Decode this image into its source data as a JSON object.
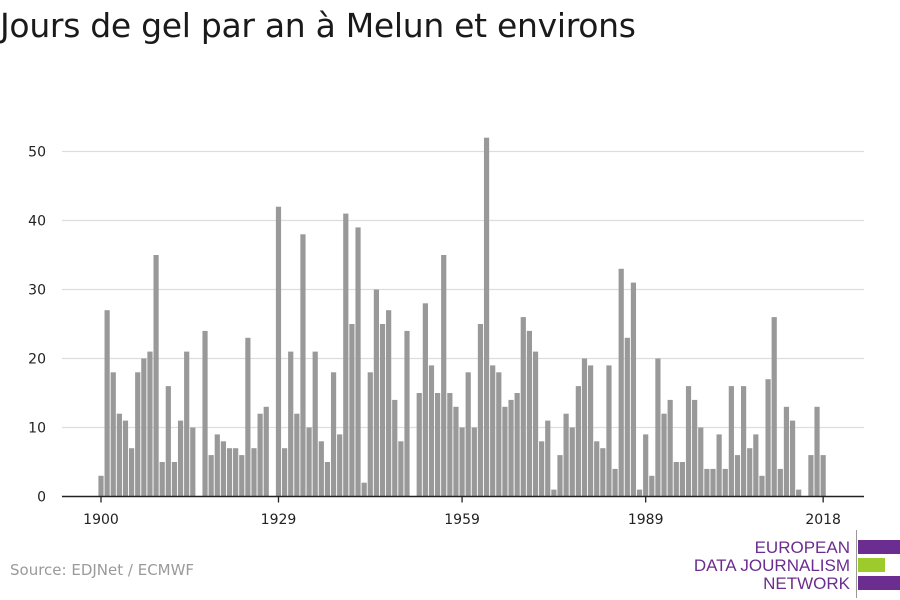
{
  "title": "Jours de gel par an à Melun et environs",
  "source": "Source: EDJNet / ECMWF",
  "logo": {
    "line1": "EUROPEAN",
    "line2": "DATA JOURNALISM",
    "line3": "NETWORK",
    "colors": {
      "purple": "#6b2d8f",
      "green": "#9ecb2c"
    }
  },
  "chart_data": {
    "type": "bar",
    "title": "Jours de gel par an à Melun et environs",
    "xlabel": "",
    "ylabel": "",
    "ylim": [
      0,
      55
    ],
    "yticks": [
      0,
      10,
      20,
      30,
      40,
      50
    ],
    "xticks": [
      1900,
      1929,
      1959,
      1989,
      2018
    ],
    "grid": true,
    "bar_color": "#999999",
    "series": [
      {
        "start_year": 1900,
        "values": [
          3,
          27,
          18,
          12,
          11,
          7,
          18,
          20,
          21,
          35,
          5,
          16,
          5,
          11,
          21,
          10,
          0,
          24,
          6,
          9,
          8,
          7,
          7,
          6,
          23,
          7,
          12,
          13,
          0,
          42,
          7,
          21,
          12,
          38,
          10,
          21,
          8,
          5,
          18,
          9,
          41,
          25,
          39,
          2,
          18,
          30,
          25,
          27,
          14,
          8,
          24,
          0,
          15,
          28,
          19,
          15,
          35,
          15,
          13,
          10,
          18,
          10,
          25,
          52,
          19,
          18,
          13,
          14,
          15,
          26,
          24,
          21,
          8,
          11,
          1,
          6,
          12,
          10,
          16,
          20,
          19,
          8,
          7,
          19,
          4,
          33,
          23,
          31,
          1,
          9,
          3,
          20,
          12,
          14,
          5,
          5,
          16,
          14,
          10,
          4,
          4,
          9,
          4,
          16,
          6,
          16,
          7,
          9,
          3,
          17,
          26,
          4,
          13,
          11,
          1,
          0,
          6,
          13,
          6
        ]
      }
    ]
  }
}
